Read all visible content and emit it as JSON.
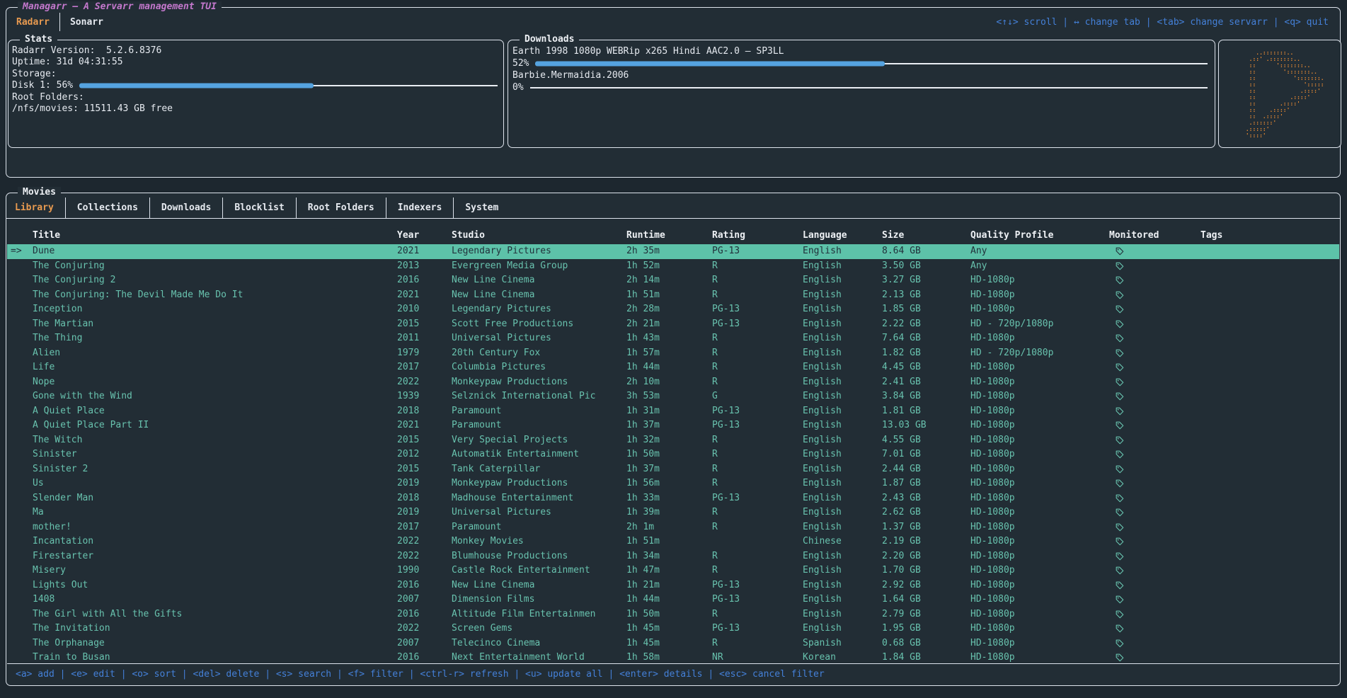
{
  "app": {
    "title": "Managarr – A Servarr management TUI",
    "servarr_tabs": [
      {
        "label": "Radarr",
        "active": true
      },
      {
        "label": "Sonarr",
        "active": false
      }
    ],
    "top_help": "<↑↓> scroll | ↔ change tab | <tab> change servarr | <q> quit"
  },
  "colors": {
    "accent_orange": "#e89a50",
    "logo_orange": "#e78a33",
    "title_magenta": "#c478cd",
    "help_blue": "#4480d8",
    "gauge_blue": "#55a3e0",
    "table_teal": "#68c2ae",
    "selection_bg": "#5dc2a9",
    "border_white": "#dde3ec"
  },
  "stats": {
    "title": "Stats",
    "version_line": "Radarr Version:  5.2.6.8376",
    "uptime_line": "Uptime: 31d 04:31:55",
    "storage_label": "Storage:",
    "disk_label": "Disk 1: 56%",
    "disk_percent": 56,
    "root_folders_label": "Root Folders:",
    "root_folder_line": "/nfs/movies: 11511.43 GB free"
  },
  "downloads": {
    "title": "Downloads",
    "items": [
      {
        "name": "Earth 1998 1080p WEBRip x265 Hindi AAC2.0 – SP3LL",
        "percent_label": "52%",
        "percent": 52
      },
      {
        "name": "Barbie.Mermaidia.2006",
        "percent_label": "0%",
        "percent": 0
      }
    ]
  },
  "logo": {
    "ascii": [
      "      ..:::::::..",
      "    .::' .:::::::..",
      "    ::      ':::::::..",
      "    ::        ':::::::..",
      "    ::           ':::::::.",
      "    ::              ':::::",
      "    ::             .::::'",
      "    ::          .::::'",
      "    ::       .::::'",
      "    ::    .::::'",
      "    ::  .::::'",
      "    .::::::'",
      "   .:::::'",
      "   '::::'"
    ]
  },
  "movies": {
    "title": "Movies",
    "tabs": [
      {
        "label": "Library",
        "active": true
      },
      {
        "label": "Collections",
        "active": false
      },
      {
        "label": "Downloads",
        "active": false
      },
      {
        "label": "Blocklist",
        "active": false
      },
      {
        "label": "Root Folders",
        "active": false
      },
      {
        "label": "Indexers",
        "active": false
      },
      {
        "label": "System",
        "active": false
      }
    ],
    "columns": [
      "Title",
      "Year",
      "Studio",
      "Runtime",
      "Rating",
      "Language",
      "Size",
      "Quality Profile",
      "Monitored",
      "Tags"
    ],
    "selection_marker": "=>",
    "selected_index": 0,
    "rows": [
      {
        "title": "Dune",
        "year": "2021",
        "studio": "Legendary Pictures",
        "runtime": "2h 35m",
        "rating": "PG-13",
        "language": "English",
        "size": "8.64 GB",
        "quality_profile": "Any",
        "monitored": true,
        "tags": ""
      },
      {
        "title": "The Conjuring",
        "year": "2013",
        "studio": "Evergreen Media Group",
        "runtime": "1h 52m",
        "rating": "R",
        "language": "English",
        "size": "3.50 GB",
        "quality_profile": "Any",
        "monitored": true,
        "tags": ""
      },
      {
        "title": "The Conjuring 2",
        "year": "2016",
        "studio": "New Line Cinema",
        "runtime": "2h 14m",
        "rating": "R",
        "language": "English",
        "size": "3.27 GB",
        "quality_profile": "HD-1080p",
        "monitored": true,
        "tags": ""
      },
      {
        "title": "The Conjuring: The Devil Made Me Do It",
        "year": "2021",
        "studio": "New Line Cinema",
        "runtime": "1h 51m",
        "rating": "R",
        "language": "English",
        "size": "2.13 GB",
        "quality_profile": "HD-1080p",
        "monitored": true,
        "tags": ""
      },
      {
        "title": "Inception",
        "year": "2010",
        "studio": "Legendary Pictures",
        "runtime": "2h 28m",
        "rating": "PG-13",
        "language": "English",
        "size": "1.85 GB",
        "quality_profile": "HD-1080p",
        "monitored": true,
        "tags": ""
      },
      {
        "title": "The Martian",
        "year": "2015",
        "studio": "Scott Free Productions",
        "runtime": "2h 21m",
        "rating": "PG-13",
        "language": "English",
        "size": "2.22 GB",
        "quality_profile": "HD - 720p/1080p",
        "monitored": true,
        "tags": ""
      },
      {
        "title": "The Thing",
        "year": "2011",
        "studio": "Universal Pictures",
        "runtime": "1h 43m",
        "rating": "R",
        "language": "English",
        "size": "7.64 GB",
        "quality_profile": "HD-1080p",
        "monitored": true,
        "tags": ""
      },
      {
        "title": "Alien",
        "year": "1979",
        "studio": "20th Century Fox",
        "runtime": "1h 57m",
        "rating": "R",
        "language": "English",
        "size": "1.82 GB",
        "quality_profile": "HD - 720p/1080p",
        "monitored": true,
        "tags": ""
      },
      {
        "title": "Life",
        "year": "2017",
        "studio": "Columbia Pictures",
        "runtime": "1h 44m",
        "rating": "R",
        "language": "English",
        "size": "4.45 GB",
        "quality_profile": "HD-1080p",
        "monitored": true,
        "tags": ""
      },
      {
        "title": "Nope",
        "year": "2022",
        "studio": "Monkeypaw Productions",
        "runtime": "2h 10m",
        "rating": "R",
        "language": "English",
        "size": "2.41 GB",
        "quality_profile": "HD-1080p",
        "monitored": true,
        "tags": ""
      },
      {
        "title": "Gone with the Wind",
        "year": "1939",
        "studio": "Selznick International Pic",
        "runtime": "3h 53m",
        "rating": "G",
        "language": "English",
        "size": "3.84 GB",
        "quality_profile": "HD-1080p",
        "monitored": true,
        "tags": ""
      },
      {
        "title": "A Quiet Place",
        "year": "2018",
        "studio": "Paramount",
        "runtime": "1h 31m",
        "rating": "PG-13",
        "language": "English",
        "size": "1.81 GB",
        "quality_profile": "HD-1080p",
        "monitored": true,
        "tags": ""
      },
      {
        "title": "A Quiet Place Part II",
        "year": "2021",
        "studio": "Paramount",
        "runtime": "1h 37m",
        "rating": "PG-13",
        "language": "English",
        "size": "13.03 GB",
        "quality_profile": "HD-1080p",
        "monitored": true,
        "tags": ""
      },
      {
        "title": "The Witch",
        "year": "2015",
        "studio": "Very Special Projects",
        "runtime": "1h 32m",
        "rating": "R",
        "language": "English",
        "size": "4.55 GB",
        "quality_profile": "HD-1080p",
        "monitored": true,
        "tags": ""
      },
      {
        "title": "Sinister",
        "year": "2012",
        "studio": "Automatik Entertainment",
        "runtime": "1h 50m",
        "rating": "R",
        "language": "English",
        "size": "7.01 GB",
        "quality_profile": "HD-1080p",
        "monitored": true,
        "tags": ""
      },
      {
        "title": "Sinister 2",
        "year": "2015",
        "studio": "Tank Caterpillar",
        "runtime": "1h 37m",
        "rating": "R",
        "language": "English",
        "size": "2.44 GB",
        "quality_profile": "HD-1080p",
        "monitored": true,
        "tags": ""
      },
      {
        "title": "Us",
        "year": "2019",
        "studio": "Monkeypaw Productions",
        "runtime": "1h 56m",
        "rating": "R",
        "language": "English",
        "size": "1.87 GB",
        "quality_profile": "HD-1080p",
        "monitored": true,
        "tags": ""
      },
      {
        "title": "Slender Man",
        "year": "2018",
        "studio": "Madhouse Entertainment",
        "runtime": "1h 33m",
        "rating": "PG-13",
        "language": "English",
        "size": "2.43 GB",
        "quality_profile": "HD-1080p",
        "monitored": true,
        "tags": ""
      },
      {
        "title": "Ma",
        "year": "2019",
        "studio": "Universal Pictures",
        "runtime": "1h 39m",
        "rating": "R",
        "language": "English",
        "size": "2.62 GB",
        "quality_profile": "HD-1080p",
        "monitored": true,
        "tags": ""
      },
      {
        "title": "mother!",
        "year": "2017",
        "studio": "Paramount",
        "runtime": "2h 1m",
        "rating": "R",
        "language": "English",
        "size": "1.37 GB",
        "quality_profile": "HD-1080p",
        "monitored": true,
        "tags": ""
      },
      {
        "title": "Incantation",
        "year": "2022",
        "studio": "Monkey Movies",
        "runtime": "1h 51m",
        "rating": "",
        "language": "Chinese",
        "size": "2.19 GB",
        "quality_profile": "HD-1080p",
        "monitored": true,
        "tags": ""
      },
      {
        "title": "Firestarter",
        "year": "2022",
        "studio": "Blumhouse Productions",
        "runtime": "1h 34m",
        "rating": "R",
        "language": "English",
        "size": "2.20 GB",
        "quality_profile": "HD-1080p",
        "monitored": true,
        "tags": ""
      },
      {
        "title": "Misery",
        "year": "1990",
        "studio": "Castle Rock Entertainment",
        "runtime": "1h 47m",
        "rating": "R",
        "language": "English",
        "size": "1.70 GB",
        "quality_profile": "HD-1080p",
        "monitored": true,
        "tags": ""
      },
      {
        "title": "Lights Out",
        "year": "2016",
        "studio": "New Line Cinema",
        "runtime": "1h 21m",
        "rating": "PG-13",
        "language": "English",
        "size": "2.92 GB",
        "quality_profile": "HD-1080p",
        "monitored": true,
        "tags": ""
      },
      {
        "title": "1408",
        "year": "2007",
        "studio": "Dimension Films",
        "runtime": "1h 44m",
        "rating": "PG-13",
        "language": "English",
        "size": "1.64 GB",
        "quality_profile": "HD-1080p",
        "monitored": true,
        "tags": ""
      },
      {
        "title": "The Girl with All the Gifts",
        "year": "2016",
        "studio": "Altitude Film Entertainmen",
        "runtime": "1h 50m",
        "rating": "R",
        "language": "English",
        "size": "2.79 GB",
        "quality_profile": "HD-1080p",
        "monitored": true,
        "tags": ""
      },
      {
        "title": "The Invitation",
        "year": "2022",
        "studio": "Screen Gems",
        "runtime": "1h 45m",
        "rating": "PG-13",
        "language": "English",
        "size": "1.95 GB",
        "quality_profile": "HD-1080p",
        "monitored": true,
        "tags": ""
      },
      {
        "title": "The Orphanage",
        "year": "2007",
        "studio": "Telecinco Cinema",
        "runtime": "1h 45m",
        "rating": "R",
        "language": "Spanish",
        "size": "0.68 GB",
        "quality_profile": "HD-1080p",
        "monitored": true,
        "tags": ""
      },
      {
        "title": "Train to Busan",
        "year": "2016",
        "studio": "Next Entertainment World",
        "runtime": "1h 58m",
        "rating": "NR",
        "language": "Korean",
        "size": "1.84 GB",
        "quality_profile": "HD-1080p",
        "monitored": true,
        "tags": ""
      }
    ],
    "bottom_help": "<a> add | <e> edit | <o> sort | <del> delete | <s> search | <f> filter | <ctrl-r> refresh | <u> update all | <enter> details | <esc> cancel filter"
  }
}
